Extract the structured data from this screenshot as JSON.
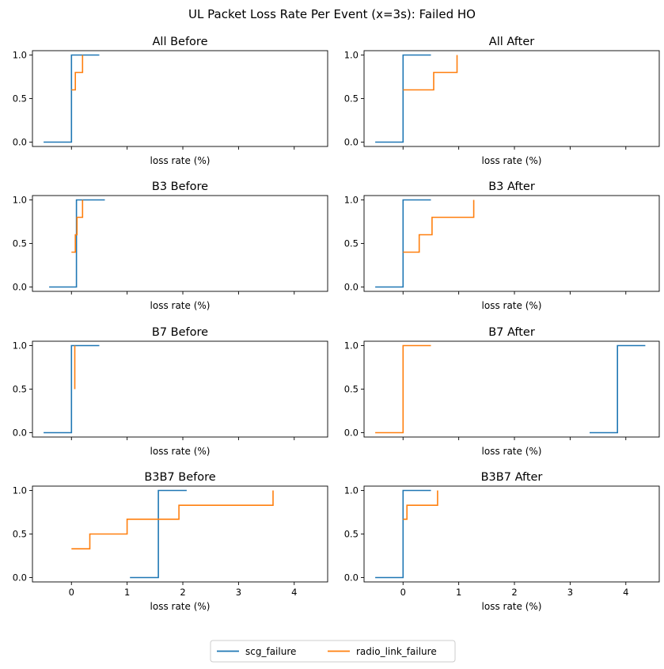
{
  "suptitle": "UL Packet Loss Rate Per Event (x=3s): Failed HO",
  "legend": {
    "placement": "bottom-center",
    "entries": [
      {
        "name": "scg_failure",
        "color": "#1f77b4"
      },
      {
        "name": "radio_link_failure",
        "color": "#ff7f0e"
      }
    ]
  },
  "chart_data": [
    {
      "type": "line",
      "step": true,
      "title": "All Before",
      "xlabel": "loss rate (%)",
      "xlim": [
        -0.7,
        4.6
      ],
      "ylim": [
        -0.05,
        1.05
      ],
      "xticks": [
        0,
        1,
        2,
        3,
        4
      ],
      "show_xtick_labels": false,
      "yticks": [
        "0.0",
        "0.5",
        "1.0"
      ],
      "series": [
        {
          "name": "scg_failure",
          "color": "#1f77b4",
          "x": [
            -0.5,
            0.0,
            0.0,
            0.5
          ],
          "y": [
            0.0,
            0.0,
            1.0,
            1.0
          ]
        },
        {
          "name": "radio_link_failure",
          "color": "#ff7f0e",
          "x": [
            0.0,
            0.07,
            0.07,
            0.2,
            0.2
          ],
          "y": [
            0.6,
            0.6,
            0.8,
            0.8,
            1.0
          ]
        }
      ]
    },
    {
      "type": "line",
      "step": true,
      "title": "All After",
      "xlabel": "loss rate (%)",
      "xlim": [
        -0.7,
        4.6
      ],
      "ylim": [
        -0.05,
        1.05
      ],
      "xticks": [
        0,
        1,
        2,
        3,
        4
      ],
      "show_xtick_labels": false,
      "yticks": [
        "0.0",
        "0.5",
        "1.0"
      ],
      "series": [
        {
          "name": "scg_failure",
          "color": "#1f77b4",
          "x": [
            -0.5,
            0.0,
            0.0,
            0.5
          ],
          "y": [
            0.0,
            0.0,
            1.0,
            1.0
          ]
        },
        {
          "name": "radio_link_failure",
          "color": "#ff7f0e",
          "x": [
            0.0,
            0.55,
            0.55,
            0.97,
            0.97
          ],
          "y": [
            0.6,
            0.6,
            0.8,
            0.8,
            1.0
          ]
        }
      ]
    },
    {
      "type": "line",
      "step": true,
      "title": "B3 Before",
      "xlabel": "loss rate (%)",
      "xlim": [
        -0.7,
        4.6
      ],
      "ylim": [
        -0.05,
        1.05
      ],
      "xticks": [
        0,
        1,
        2,
        3,
        4
      ],
      "show_xtick_labels": false,
      "yticks": [
        "0.0",
        "0.5",
        "1.0"
      ],
      "series": [
        {
          "name": "scg_failure",
          "color": "#1f77b4",
          "x": [
            -0.4,
            0.09,
            0.09,
            0.6
          ],
          "y": [
            0.0,
            0.0,
            1.0,
            1.0
          ]
        },
        {
          "name": "radio_link_failure",
          "color": "#ff7f0e",
          "x": [
            0.0,
            0.07,
            0.07,
            0.1,
            0.1,
            0.2,
            0.2
          ],
          "y": [
            0.4,
            0.4,
            0.6,
            0.6,
            0.8,
            0.8,
            1.0
          ]
        }
      ]
    },
    {
      "type": "line",
      "step": true,
      "title": "B3 After",
      "xlabel": "loss rate (%)",
      "xlim": [
        -0.7,
        4.6
      ],
      "ylim": [
        -0.05,
        1.05
      ],
      "xticks": [
        0,
        1,
        2,
        3,
        4
      ],
      "show_xtick_labels": false,
      "yticks": [
        "0.0",
        "0.5",
        "1.0"
      ],
      "series": [
        {
          "name": "scg_failure",
          "color": "#1f77b4",
          "x": [
            -0.5,
            0.0,
            0.0,
            0.5
          ],
          "y": [
            0.0,
            0.0,
            1.0,
            1.0
          ]
        },
        {
          "name": "radio_link_failure",
          "color": "#ff7f0e",
          "x": [
            0.0,
            0.29,
            0.29,
            0.52,
            0.52,
            1.27,
            1.27
          ],
          "y": [
            0.4,
            0.4,
            0.6,
            0.6,
            0.8,
            0.8,
            1.0
          ]
        }
      ]
    },
    {
      "type": "line",
      "step": true,
      "title": "B7 Before",
      "xlabel": "loss rate (%)",
      "xlim": [
        -0.7,
        4.6
      ],
      "ylim": [
        -0.05,
        1.05
      ],
      "xticks": [
        0,
        1,
        2,
        3,
        4
      ],
      "show_xtick_labels": false,
      "yticks": [
        "0.0",
        "0.5",
        "1.0"
      ],
      "series": [
        {
          "name": "scg_failure",
          "color": "#1f77b4",
          "x": [
            -0.5,
            0.0,
            0.0,
            0.5
          ],
          "y": [
            0.0,
            0.0,
            1.0,
            1.0
          ]
        },
        {
          "name": "radio_link_failure",
          "color": "#ff7f0e",
          "x": [
            0.06,
            0.06
          ],
          "y": [
            0.5,
            1.0
          ]
        }
      ]
    },
    {
      "type": "line",
      "step": true,
      "title": "B7 After",
      "xlabel": "loss rate (%)",
      "xlim": [
        -0.7,
        4.6
      ],
      "ylim": [
        -0.05,
        1.05
      ],
      "xticks": [
        0,
        1,
        2,
        3,
        4
      ],
      "show_xtick_labels": false,
      "yticks": [
        "0.0",
        "0.5",
        "1.0"
      ],
      "series": [
        {
          "name": "scg_failure",
          "color": "#1f77b4",
          "x": [
            3.35,
            3.85,
            3.85,
            4.35
          ],
          "y": [
            0.0,
            0.0,
            1.0,
            1.0
          ]
        },
        {
          "name": "radio_link_failure",
          "color": "#ff7f0e",
          "x": [
            -0.5,
            0.0,
            0.0,
            0.5
          ],
          "y": [
            0.0,
            0.0,
            1.0,
            1.0
          ]
        }
      ]
    },
    {
      "type": "line",
      "step": true,
      "title": "B3B7 Before",
      "xlabel": "loss rate (%)",
      "xlim": [
        -0.7,
        4.6
      ],
      "ylim": [
        -0.05,
        1.05
      ],
      "xticks": [
        0,
        1,
        2,
        3,
        4
      ],
      "show_xtick_labels": true,
      "yticks": [
        "0.0",
        "0.5",
        "1.0"
      ],
      "series": [
        {
          "name": "scg_failure",
          "color": "#1f77b4",
          "x": [
            1.05,
            1.56,
            1.56,
            2.07
          ],
          "y": [
            0.0,
            0.0,
            1.0,
            1.0
          ]
        },
        {
          "name": "radio_link_failure",
          "color": "#ff7f0e",
          "x": [
            0.0,
            0.33,
            0.33,
            1.0,
            1.0,
            1.93,
            1.93,
            3.62,
            3.62
          ],
          "y": [
            0.33,
            0.33,
            0.5,
            0.5,
            0.67,
            0.67,
            0.83,
            0.83,
            1.0
          ]
        }
      ]
    },
    {
      "type": "line",
      "step": true,
      "title": "B3B7 After",
      "xlabel": "loss rate (%)",
      "xlim": [
        -0.7,
        4.6
      ],
      "ylim": [
        -0.05,
        1.05
      ],
      "xticks": [
        0,
        1,
        2,
        3,
        4
      ],
      "show_xtick_labels": true,
      "yticks": [
        "0.0",
        "0.5",
        "1.0"
      ],
      "series": [
        {
          "name": "scg_failure",
          "color": "#1f77b4",
          "x": [
            -0.5,
            0.0,
            0.0,
            0.5
          ],
          "y": [
            0.0,
            0.0,
            1.0,
            1.0
          ]
        },
        {
          "name": "radio_link_failure",
          "color": "#ff7f0e",
          "x": [
            0.0,
            0.07,
            0.07,
            0.62,
            0.62
          ],
          "y": [
            0.67,
            0.67,
            0.83,
            0.83,
            1.0
          ]
        }
      ]
    }
  ]
}
